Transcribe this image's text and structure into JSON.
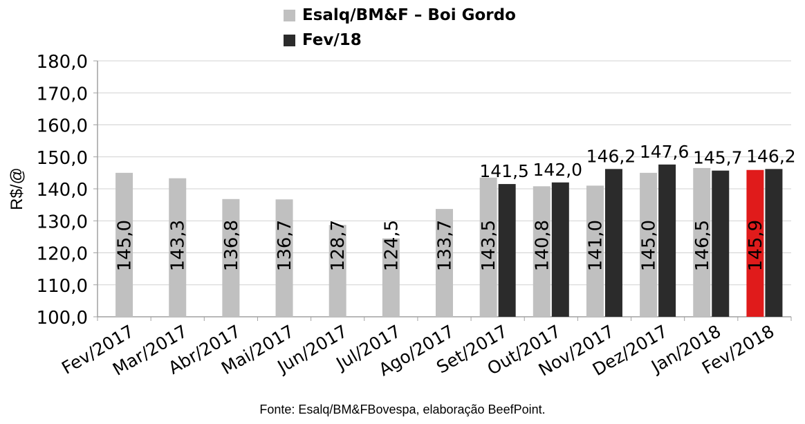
{
  "chart_data": {
    "type": "bar",
    "categories": [
      "Fev/2017",
      "Mar/2017",
      "Abr/2017",
      "Mai/2017",
      "Jun/2017",
      "Jul/2017",
      "Ago/2017",
      "Set/2017",
      "Out/2017",
      "Nov/2017",
      "Dez/2017",
      "Jan/2018",
      "Fev/2018"
    ],
    "series": [
      {
        "name": "Esalq/BM&F – Boi Gordo",
        "color": "#c0c0c0",
        "values": [
          145.0,
          143.3,
          136.8,
          136.7,
          128.7,
          124.5,
          133.7,
          143.5,
          140.8,
          141.0,
          145.0,
          146.5,
          145.9
        ],
        "labels": [
          "145,0",
          "143,3",
          "136,8",
          "136,7",
          "128,7",
          "124,5",
          "133,7",
          "143,5",
          "140,8",
          "141,0",
          "145,0",
          "146,5",
          "145,9"
        ],
        "highlight_index": 12,
        "highlight_color": "#e01b1b"
      },
      {
        "name": "Fev/18",
        "color": "#2b2b2b",
        "values": [
          null,
          null,
          null,
          null,
          null,
          null,
          null,
          141.5,
          142.0,
          146.2,
          147.6,
          145.7,
          146.2
        ],
        "labels": [
          "",
          "",
          "",
          "",
          "",
          "",
          "",
          "141,5",
          "142,0",
          "146,2",
          "147,6",
          "145,7",
          "146,2"
        ]
      }
    ],
    "ylabel": "R$/@",
    "ylim": [
      100,
      180
    ],
    "yticks": [
      "100,0",
      "110,0",
      "120,0",
      "130,0",
      "140,0",
      "150,0",
      "160,0",
      "170,0",
      "180,0"
    ],
    "source": "Fonte: Esalq/BM&FBovespa, elaboração BeefPoint."
  }
}
